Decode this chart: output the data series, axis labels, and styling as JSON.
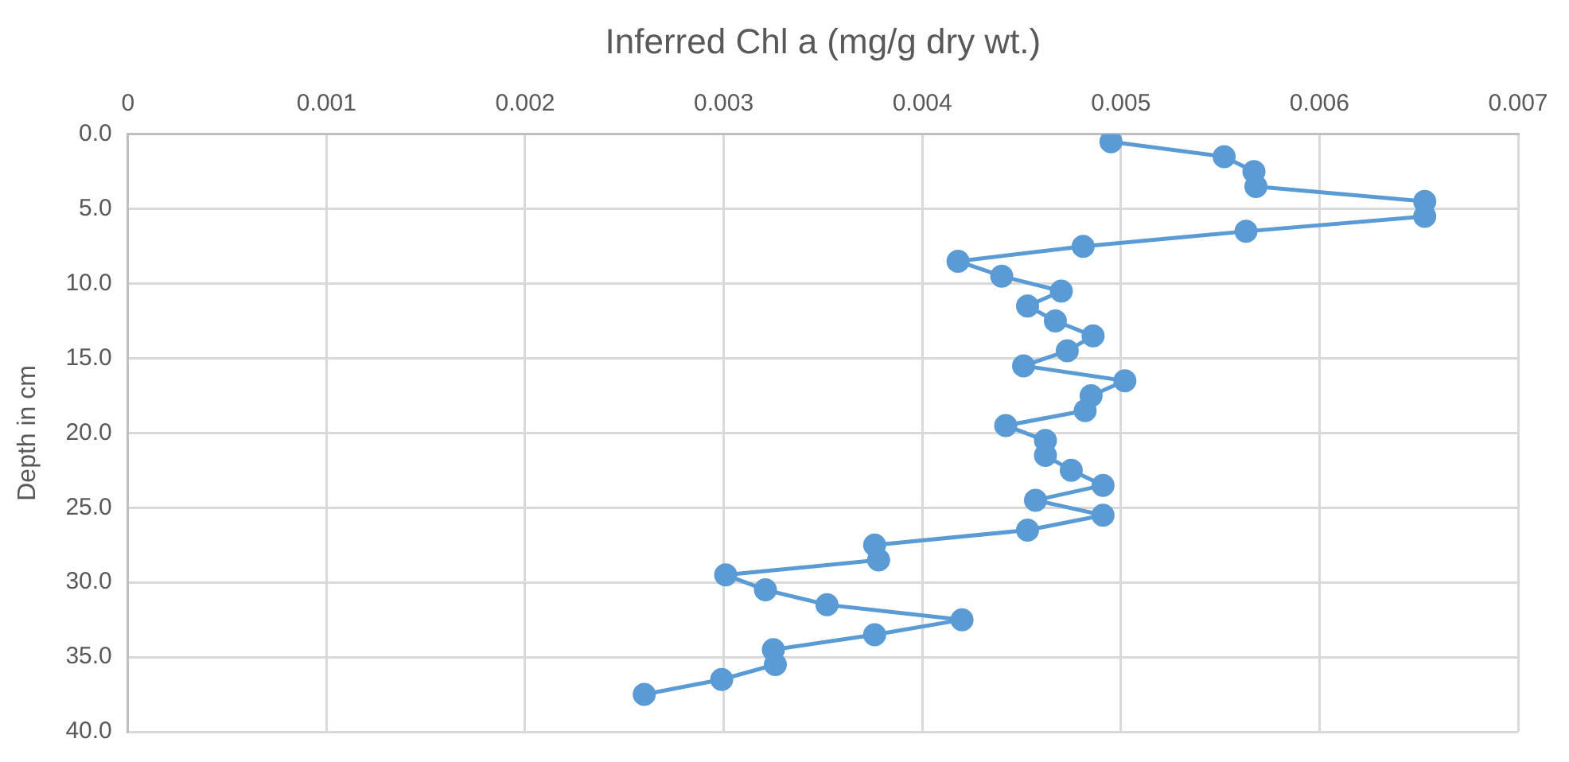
{
  "chart_data": {
    "type": "line",
    "xlabel": "Inferred Chl a (mg/g dry wt.)",
    "ylabel": "Depth in cm",
    "xlim": [
      0,
      0.007
    ],
    "xticks": [
      0,
      0.001,
      0.002,
      0.003,
      0.004,
      0.005,
      0.006,
      0.007
    ],
    "ylim": [
      40,
      0
    ],
    "yticks": [
      {
        "value": 0,
        "label": "0.0"
      },
      {
        "value": 5,
        "label": "5.0"
      },
      {
        "value": 10,
        "label": "10.0"
      },
      {
        "value": 15,
        "label": "15.0"
      },
      {
        "value": 20,
        "label": "20.0"
      },
      {
        "value": 25,
        "label": "25.0"
      },
      {
        "value": 30,
        "label": "30.0"
      },
      {
        "value": 35,
        "label": "35.0"
      },
      {
        "value": 40,
        "label": "40.0"
      }
    ],
    "grid": true,
    "legend": false,
    "marker": "circle",
    "line_style": "solid",
    "series": [
      {
        "color": "#5b9bd5",
        "x": [
          0.00495,
          0.00552,
          0.00567,
          0.00568,
          0.00653,
          0.00653,
          0.00563,
          0.00481,
          0.00418,
          0.0044,
          0.0047,
          0.00453,
          0.00467,
          0.00486,
          0.00473,
          0.00451,
          0.00502,
          0.00485,
          0.00482,
          0.00442,
          0.00462,
          0.00462,
          0.00475,
          0.00491,
          0.00457,
          0.00491,
          0.00453,
          0.00376,
          0.00378,
          0.00301,
          0.00321,
          0.00352,
          0.0042,
          0.00376,
          0.00325,
          0.00326,
          0.00299,
          0.0026
        ],
        "values": [
          0.5,
          1.5,
          2.5,
          3.5,
          4.5,
          5.5,
          6.5,
          7.5,
          8.5,
          9.5,
          10.5,
          11.5,
          12.5,
          13.5,
          14.5,
          15.5,
          16.5,
          17.5,
          18.5,
          19.5,
          20.5,
          21.5,
          22.5,
          23.5,
          24.5,
          25.5,
          26.5,
          27.5,
          28.5,
          29.5,
          30.5,
          31.5,
          32.5,
          33.5,
          34.5,
          35.5,
          36.5,
          37.5
        ]
      }
    ]
  }
}
